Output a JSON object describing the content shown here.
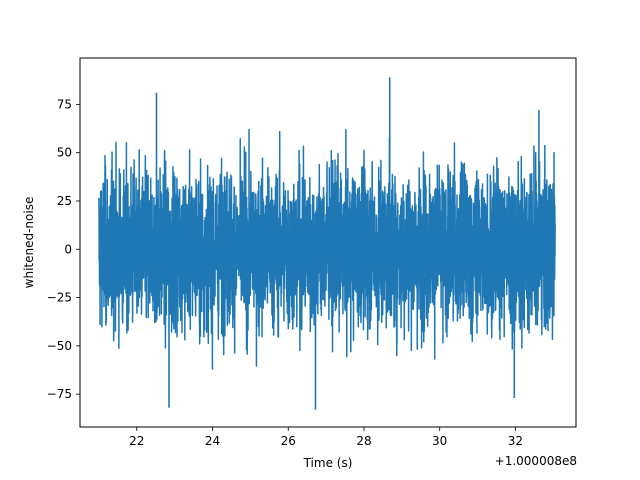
{
  "chart_data": {
    "type": "line",
    "title": "",
    "xlabel": "Time (s)",
    "ylabel": "whitened-noise",
    "x_offset_label": "+1.000008e8",
    "xlim": [
      20.5,
      33.6
    ],
    "ylim": [
      -92,
      99
    ],
    "x_ticks": [
      22,
      24,
      26,
      28,
      30,
      32
    ],
    "y_ticks": [
      -75,
      -50,
      -25,
      0,
      25,
      50,
      75
    ],
    "grid": false,
    "series": [
      {
        "name": "",
        "color": "#1f77b4",
        "x_range": [
          21.0,
          33.05
        ],
        "envelope_note": "dense whitened noise, typical amplitude about ±40",
        "peaks": [
          {
            "x": 22.52,
            "y": 81
          },
          {
            "x": 22.85,
            "y": -82
          },
          {
            "x": 26.72,
            "y": -83
          },
          {
            "x": 28.68,
            "y": 89
          },
          {
            "x": 31.97,
            "y": -77
          },
          {
            "x": 32.62,
            "y": 72
          }
        ]
      }
    ]
  }
}
